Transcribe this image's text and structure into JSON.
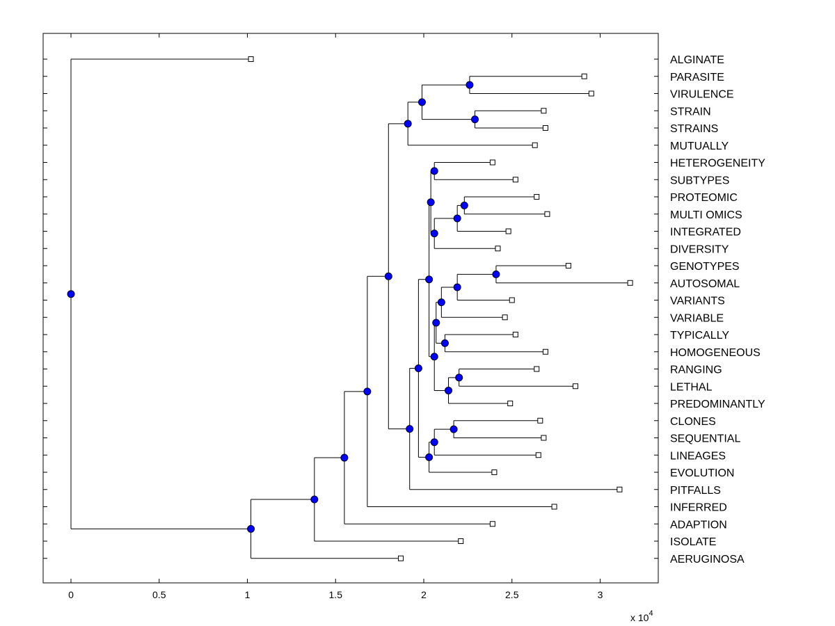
{
  "chart_data": {
    "type": "dendrogram",
    "x_ticks": [
      0,
      0.5,
      1,
      1.5,
      2,
      2.5,
      3
    ],
    "x_tick_labels": [
      "0",
      "0.5",
      "1",
      "1.5",
      "2",
      "2.5",
      "3"
    ],
    "xlim": [
      -0.15,
      3.32
    ],
    "x_scale_base": "x 10",
    "x_scale_exp": "4",
    "leaves": [
      {
        "label": "ALGINATE",
        "x": 1.02
      },
      {
        "label": "PARASITE",
        "x": 2.91
      },
      {
        "label": "VIRULENCE",
        "x": 2.95
      },
      {
        "label": "STRAIN",
        "x": 2.68
      },
      {
        "label": "STRAINS",
        "x": 2.69
      },
      {
        "label": "MUTUALLY",
        "x": 2.63
      },
      {
        "label": "HETEROGENEITY",
        "x": 2.39
      },
      {
        "label": "SUBTYPES",
        "x": 2.52
      },
      {
        "label": "PROTEOMIC",
        "x": 2.64
      },
      {
        "label": "MULTI OMICS",
        "x": 2.7
      },
      {
        "label": "INTEGRATED",
        "x": 2.48
      },
      {
        "label": "DIVERSITY",
        "x": 2.42
      },
      {
        "label": "GENOTYPES",
        "x": 2.82
      },
      {
        "label": "AUTOSOMAL",
        "x": 3.17
      },
      {
        "label": "VARIANTS",
        "x": 2.5
      },
      {
        "label": "VARIABLE",
        "x": 2.46
      },
      {
        "label": "TYPICALLY",
        "x": 2.52
      },
      {
        "label": "HOMOGENEOUS",
        "x": 2.69
      },
      {
        "label": "RANGING",
        "x": 2.64
      },
      {
        "label": "LETHAL",
        "x": 2.86
      },
      {
        "label": "PREDOMINANTLY",
        "x": 2.49
      },
      {
        "label": "CLONES",
        "x": 2.66
      },
      {
        "label": "SEQUENTIAL",
        "x": 2.68
      },
      {
        "label": "LINEAGES",
        "x": 2.65
      },
      {
        "label": "EVOLUTION",
        "x": 2.4
      },
      {
        "label": "PITFALLS",
        "x": 3.11
      },
      {
        "label": "INFERRED",
        "x": 2.74
      },
      {
        "label": "ADAPTION",
        "x": 2.39
      },
      {
        "label": "ISOLATE",
        "x": 2.21
      },
      {
        "label": "AERUGINOSA",
        "x": 1.87
      }
    ],
    "merges": [
      {
        "id": "n1",
        "x": 2.26,
        "children": [
          1,
          2
        ]
      },
      {
        "id": "n2",
        "x": 2.29,
        "children": [
          3,
          4
        ]
      },
      {
        "id": "n3",
        "x": 1.99,
        "children": [
          "n1",
          "n2"
        ]
      },
      {
        "id": "n4",
        "x": 1.91,
        "children": [
          "n3",
          5
        ]
      },
      {
        "id": "n5",
        "x": 2.06,
        "children": [
          6,
          7
        ]
      },
      {
        "id": "n6",
        "x": 2.23,
        "children": [
          8,
          9
        ]
      },
      {
        "id": "n7",
        "x": 2.19,
        "children": [
          "n6",
          10
        ]
      },
      {
        "id": "n8",
        "x": 2.06,
        "children": [
          "n7",
          11
        ]
      },
      {
        "id": "n9",
        "x": 2.04,
        "children": [
          "n5",
          "n8"
        ]
      },
      {
        "id": "n10",
        "x": 2.41,
        "children": [
          12,
          13
        ]
      },
      {
        "id": "n11",
        "x": 2.19,
        "children": [
          "n10",
          14
        ]
      },
      {
        "id": "n12",
        "x": 2.1,
        "children": [
          "n11",
          15
        ]
      },
      {
        "id": "n13",
        "x": 2.12,
        "children": [
          16,
          17
        ]
      },
      {
        "id": "n14",
        "x": 2.07,
        "children": [
          "n12",
          "n13"
        ]
      },
      {
        "id": "n15",
        "x": 2.2,
        "children": [
          18,
          19
        ]
      },
      {
        "id": "n16",
        "x": 2.14,
        "children": [
          "n15",
          20
        ]
      },
      {
        "id": "n17",
        "x": 2.06,
        "children": [
          "n14",
          "n16"
        ]
      },
      {
        "id": "n18",
        "x": 2.03,
        "children": [
          "n9",
          "n17"
        ]
      },
      {
        "id": "n19",
        "x": 2.17,
        "children": [
          21,
          22
        ]
      },
      {
        "id": "n20",
        "x": 2.06,
        "children": [
          "n19",
          23
        ]
      },
      {
        "id": "n21",
        "x": 2.03,
        "children": [
          "n20",
          24
        ]
      },
      {
        "id": "n22",
        "x": 1.97,
        "children": [
          "n18",
          "n21"
        ]
      },
      {
        "id": "n23",
        "x": 1.92,
        "children": [
          "n22",
          25
        ]
      },
      {
        "id": "n24",
        "x": 1.8,
        "children": [
          "n4",
          "n23"
        ]
      },
      {
        "id": "n25",
        "x": 1.68,
        "children": [
          "n24",
          26
        ]
      },
      {
        "id": "n26",
        "x": 1.55,
        "children": [
          "n25",
          27
        ]
      },
      {
        "id": "n27",
        "x": 1.38,
        "children": [
          "n26",
          28
        ]
      },
      {
        "id": "n28",
        "x": 1.02,
        "children": [
          "n27",
          29
        ]
      },
      {
        "id": "n29",
        "x": 0.0,
        "children": [
          0,
          "n28"
        ]
      }
    ]
  }
}
